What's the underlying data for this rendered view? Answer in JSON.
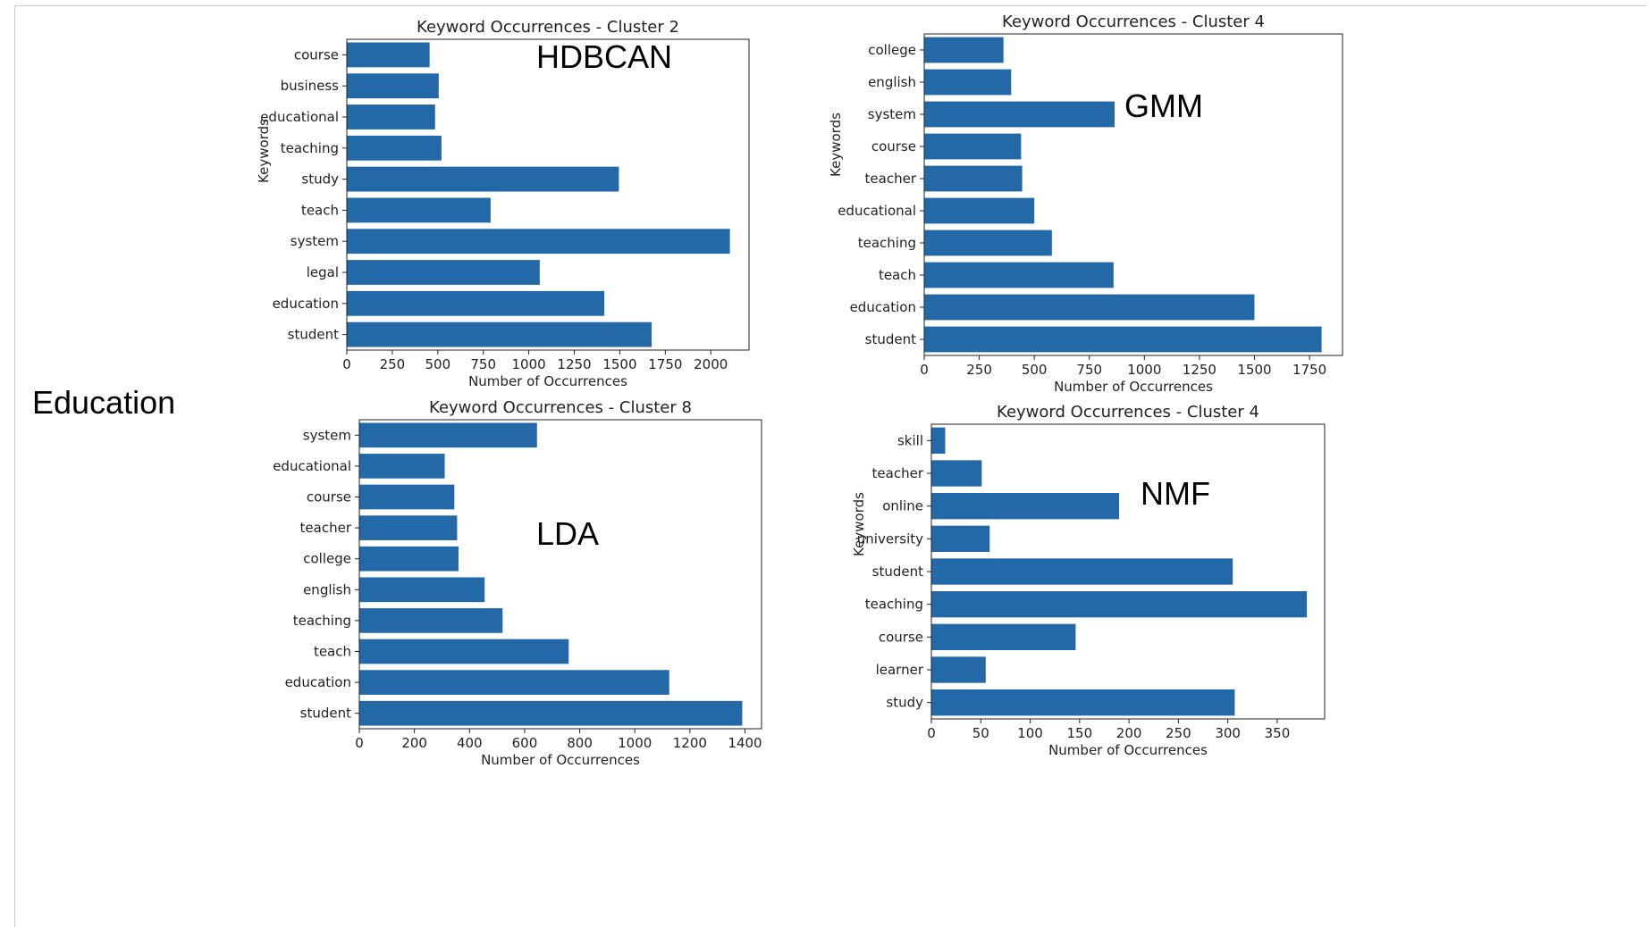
{
  "row_label": "Education",
  "chart_data": [
    {
      "id": "hdbcan",
      "type": "bar",
      "orientation": "horizontal",
      "title": "Keyword Occurrences - Cluster 2",
      "method_label": "HDBCAN",
      "xlabel": "Number of Occurrences",
      "ylabel": "Keywords",
      "xlim": [
        0,
        2210
      ],
      "xticks": [
        0,
        250,
        500,
        750,
        1000,
        1250,
        1500,
        1750,
        2000
      ],
      "categories": [
        "student",
        "education",
        "legal",
        "system",
        "teach",
        "study",
        "teaching",
        "educational",
        "business",
        "course"
      ],
      "values": [
        1675,
        1415,
        1060,
        2105,
        790,
        1495,
        520,
        485,
        505,
        455
      ],
      "bar_color": "#2369a8"
    },
    {
      "id": "gmm",
      "type": "bar",
      "orientation": "horizontal",
      "title": "Keyword Occurrences - Cluster 4",
      "method_label": "GMM",
      "xlabel": "Number of Occurrences",
      "ylabel": "Keywords",
      "xlim": [
        0,
        1900
      ],
      "xticks": [
        0,
        250,
        500,
        750,
        1000,
        1250,
        1500,
        1750
      ],
      "categories": [
        "student",
        "education",
        "teach",
        "teaching",
        "educational",
        "teacher",
        "course",
        "system",
        "english",
        "college"
      ],
      "values": [
        1805,
        1500,
        860,
        580,
        500,
        445,
        440,
        865,
        395,
        360
      ],
      "bar_color": "#2369a8"
    },
    {
      "id": "lda",
      "type": "bar",
      "orientation": "horizontal",
      "title": "Keyword Occurrences - Cluster 8",
      "method_label": "LDA",
      "xlabel": "Number of Occurrences",
      "ylabel": "",
      "xlim": [
        0,
        1460
      ],
      "xticks": [
        0,
        200,
        400,
        600,
        800,
        1000,
        1200,
        1400
      ],
      "categories": [
        "student",
        "education",
        "teach",
        "teaching",
        "english",
        "college",
        "teacher",
        "course",
        "educational",
        "system"
      ],
      "values": [
        1390,
        1125,
        760,
        520,
        455,
        360,
        355,
        345,
        310,
        645
      ],
      "bar_color": "#2369a8"
    },
    {
      "id": "nmf",
      "type": "bar",
      "orientation": "horizontal",
      "title": "Keyword Occurrences - Cluster 4",
      "method_label": "NMF",
      "xlabel": "Number of Occurrences",
      "ylabel": "Keywords",
      "xlim": [
        0,
        398
      ],
      "xticks": [
        0,
        50,
        100,
        150,
        200,
        250,
        300,
        350
      ],
      "categories": [
        "study",
        "learner",
        "course",
        "teaching",
        "student",
        "university",
        "online",
        "teacher",
        "skill"
      ],
      "values": [
        307,
        55,
        146,
        380,
        305,
        59,
        190,
        51,
        14
      ],
      "bar_color": "#2369a8"
    }
  ]
}
